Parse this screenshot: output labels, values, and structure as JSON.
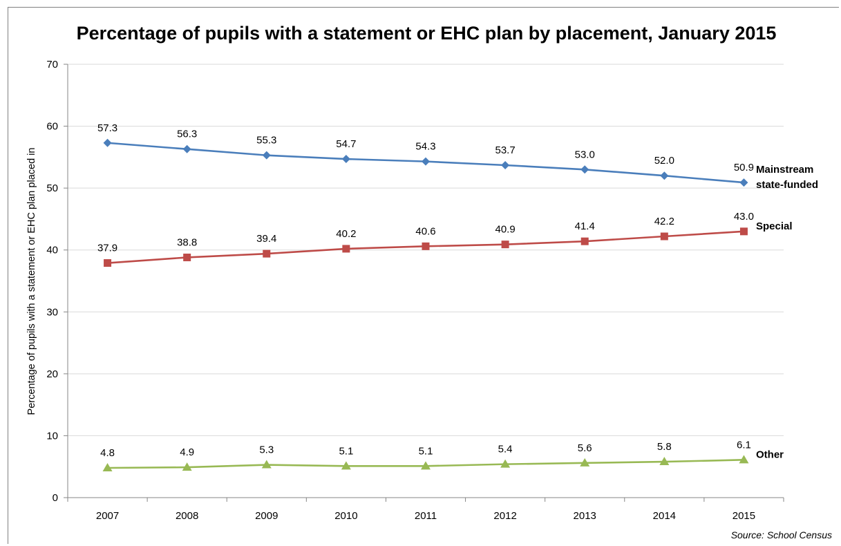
{
  "chart_data": {
    "type": "line",
    "title": "Percentage of pupils with a statement or EHC plan by placement, January 2015",
    "xlabel": "",
    "ylabel": "Percentage of pupils with a statement or EHC plan placed in",
    "categories": [
      "2007",
      "2008",
      "2009",
      "2010",
      "2011",
      "2012",
      "2013",
      "2014",
      "2015"
    ],
    "ylim": [
      0,
      70
    ],
    "yticks": [
      0,
      10,
      20,
      30,
      40,
      50,
      60,
      70
    ],
    "grid": true,
    "series": [
      {
        "name_lines": [
          "Mainstream",
          "state-funded"
        ],
        "values": [
          57.3,
          56.3,
          55.3,
          54.7,
          54.3,
          53.7,
          53.0,
          52.0,
          50.9
        ],
        "labels": [
          "57.3",
          "56.3",
          "55.3",
          "54.7",
          "54.3",
          "53.7",
          "53.0",
          "52.0",
          "50.9"
        ],
        "color": "#4a7ebb",
        "marker": "diamond"
      },
      {
        "name_lines": [
          "Special"
        ],
        "values": [
          37.9,
          38.8,
          39.4,
          40.2,
          40.6,
          40.9,
          41.4,
          42.2,
          43.0
        ],
        "labels": [
          "37.9",
          "38.8",
          "39.4",
          "40.2",
          "40.6",
          "40.9",
          "41.4",
          "42.2",
          "43.0"
        ],
        "color": "#be4b48",
        "marker": "square"
      },
      {
        "name_lines": [
          "Other"
        ],
        "values": [
          4.8,
          4.9,
          5.3,
          5.1,
          5.1,
          5.4,
          5.6,
          5.8,
          6.1
        ],
        "labels": [
          "4.8",
          "4.9",
          "5.3",
          "5.1",
          "5.1",
          "5.4",
          "5.6",
          "5.8",
          "6.1"
        ],
        "color": "#98b954",
        "marker": "triangle"
      }
    ],
    "source": "Source: School Census"
  }
}
